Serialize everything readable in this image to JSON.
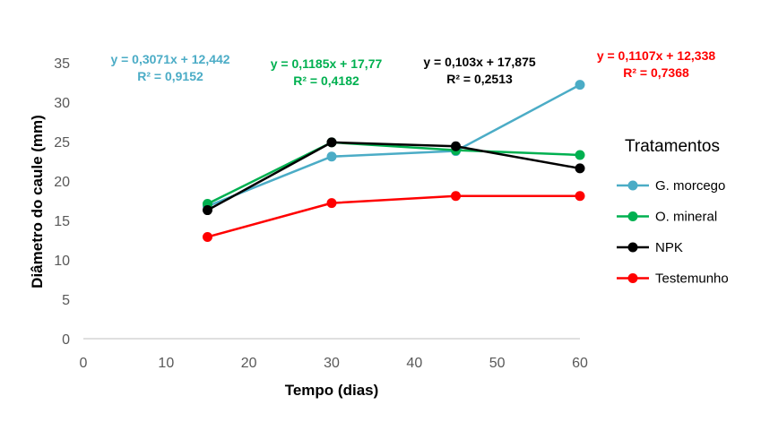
{
  "chart_data": {
    "type": "line",
    "xlabel": "Tempo (dias)",
    "ylabel": "Diâmetro do caule (mm)",
    "xlim": [
      0,
      60
    ],
    "ylim": [
      0,
      35
    ],
    "xticks": [
      "0",
      "10",
      "20",
      "30",
      "40",
      "50",
      "60"
    ],
    "yticks": [
      "0",
      "5",
      "10",
      "15",
      "20",
      "25",
      "30",
      "35"
    ],
    "grid": false,
    "legend_title": "Tratamentos",
    "legend_position": "right",
    "x": [
      15,
      30,
      45,
      60
    ],
    "series": [
      {
        "name": "G. morcego",
        "color": "#4BACC6",
        "values": [
          16.8,
          23.1,
          23.8,
          32.2
        ],
        "equation": "y = 0,3071x + 12,442",
        "r2": "R² = 0,9152"
      },
      {
        "name": "O. mineral",
        "color": "#00B050",
        "values": [
          17.1,
          24.9,
          23.9,
          23.3
        ],
        "equation": "y = 0,1185x + 17,77",
        "r2": "R² = 0,4182"
      },
      {
        "name": "NPK",
        "color": "#000000",
        "values": [
          16.3,
          24.9,
          24.4,
          21.6
        ],
        "equation": "y = 0,103x + 17,875",
        "r2": "R² = 0,2513"
      },
      {
        "name": "Testemunho",
        "color": "#FF0000",
        "values": [
          12.9,
          17.2,
          18.1,
          18.1
        ],
        "equation": "y = 0,1107x + 12,338",
        "r2": "R² = 0,7368"
      }
    ]
  }
}
